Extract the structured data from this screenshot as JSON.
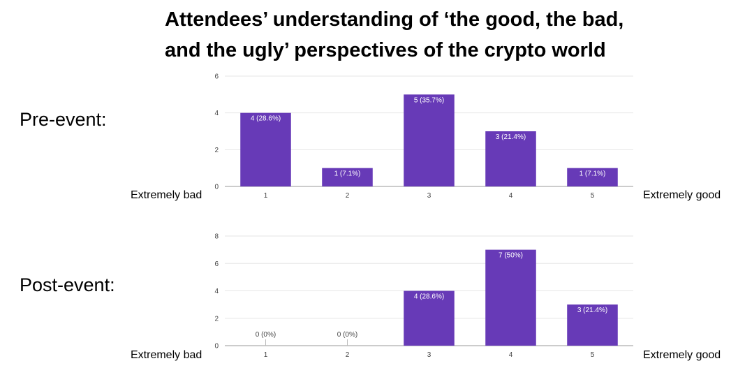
{
  "title": {
    "line1": "Attendees’ understanding of ‘the good, the bad,",
    "line2": "and the ugly’ perspectives of the crypto world"
  },
  "scale_labels": {
    "low": "Extremely bad",
    "high": "Extremely good"
  },
  "colors": {
    "bar": "#673ab7",
    "grid": "#e6e6e6",
    "axis": "#999999"
  },
  "chart_data": [
    {
      "type": "bar",
      "name": "Pre-event:",
      "categories": [
        "1",
        "2",
        "3",
        "4",
        "5"
      ],
      "values": [
        4,
        1,
        5,
        3,
        1
      ],
      "data_labels": [
        "4 (28.6%)",
        "1 (7.1%)",
        "5 (35.7%)",
        "3 (21.4%)",
        "1 (7.1%)"
      ],
      "yticks": [
        0,
        2,
        4,
        6
      ],
      "ylim": [
        0,
        6
      ]
    },
    {
      "type": "bar",
      "name": "Post-event:",
      "categories": [
        "1",
        "2",
        "3",
        "4",
        "5"
      ],
      "values": [
        0,
        0,
        4,
        7,
        3
      ],
      "data_labels": [
        "0 (0%)",
        "0 (0%)",
        "4 (28.6%)",
        "7 (50%)",
        "3 (21.4%)"
      ],
      "yticks": [
        0,
        2,
        4,
        6,
        8
      ],
      "ylim": [
        0,
        8
      ]
    }
  ]
}
